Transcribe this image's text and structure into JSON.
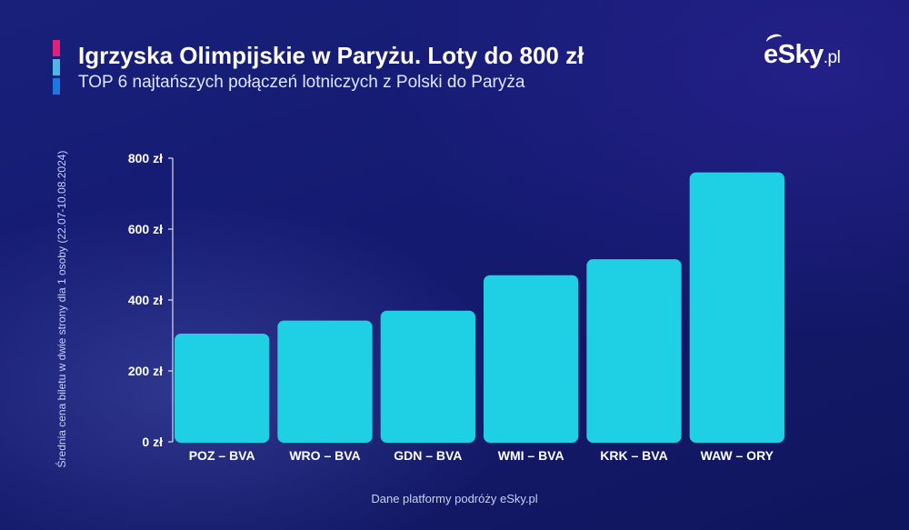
{
  "title": "Igrzyska Olimpijskie w Paryżu. Loty do 800 zł",
  "subtitle": "TOP 6 najtańszych połączeń lotniczych z Polski do Paryża",
  "logo": {
    "main": "eSky",
    "suffix": ".pl"
  },
  "source": "Dane platformy podróży eSky.pl",
  "colors": {
    "bar": "#1fcfe3",
    "background": "#161d72",
    "accent_pink": "#e0207a",
    "accent_light_blue": "#4fb6e6",
    "accent_blue": "#1f78e0"
  },
  "chart_data": {
    "type": "bar",
    "title": "Igrzyska Olimpijskie w Paryżu. Loty do 800 zł",
    "subtitle": "TOP 6 najtańszych połączeń lotniczych z Polski do Paryża",
    "xlabel": "",
    "ylabel": "Średnia cena biletu w dwie strony dla 1 osoby (22.07-10.08.2024)",
    "categories": [
      "POZ – BVA",
      "WRO – BVA",
      "GDN – BVA",
      "WMI – BVA",
      "KRK – BVA",
      "WAW – ORY"
    ],
    "values": [
      305,
      342,
      370,
      470,
      515,
      760
    ],
    "ylim": [
      0,
      800
    ],
    "yticks": [
      0,
      200,
      400,
      600,
      800
    ],
    "ytick_labels": [
      "0 zł",
      "200 zł",
      "400 zł",
      "600 zł",
      "800 zł"
    ],
    "grid": false,
    "legend": "none"
  }
}
